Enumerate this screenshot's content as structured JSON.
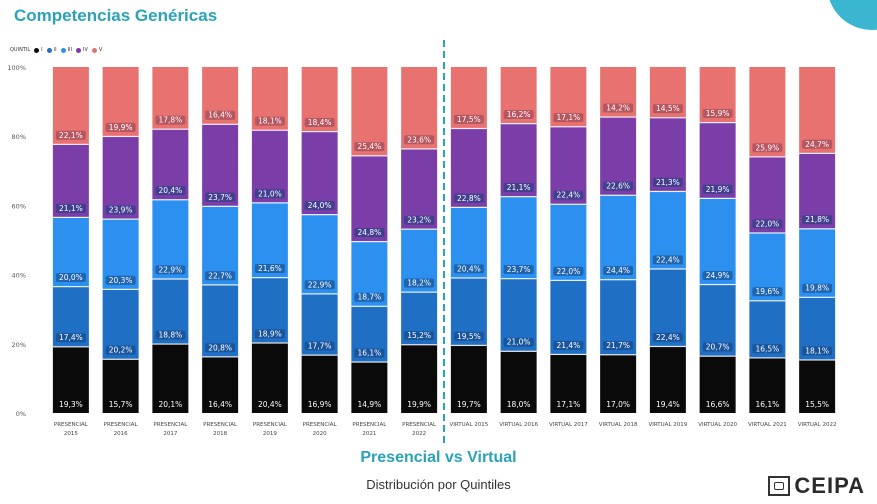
{
  "header": {
    "title": "Competencias Genéricas"
  },
  "legend": {
    "label": "QUINTIL",
    "items": [
      {
        "label": "I",
        "color": "#0a0a0a"
      },
      {
        "label": "II",
        "color": "#1f6fc5"
      },
      {
        "label": "III",
        "color": "#2c90f0"
      },
      {
        "label": "IV",
        "color": "#7b3ea8"
      },
      {
        "label": "V",
        "color": "#e8726f"
      }
    ]
  },
  "chart_data": {
    "type": "bar",
    "stacked": true,
    "categories": [
      [
        "PRESENCIAL",
        "2015"
      ],
      [
        "PRESENCIAL",
        "2016"
      ],
      [
        "PRESENCIAL",
        "2017"
      ],
      [
        "PRESENCIAL",
        "2018"
      ],
      [
        "PRESENCIAL",
        "2019"
      ],
      [
        "PRESENCIAL",
        "2020"
      ],
      [
        "PRESENCIAL",
        "2021"
      ],
      [
        "PRESENCIAL",
        "2022"
      ],
      [
        "VIRTUAL 2015"
      ],
      [
        "VIRTUAL 2016"
      ],
      [
        "VIRTUAL 2017"
      ],
      [
        "VIRTUAL 2018"
      ],
      [
        "VIRTUAL 2019"
      ],
      [
        "VIRTUAL 2020"
      ],
      [
        "VIRTUAL 2021"
      ],
      [
        "VIRTUAL 2022"
      ]
    ],
    "yticks": [
      "0%",
      "20%",
      "40%",
      "60%",
      "80%",
      "100%"
    ],
    "ylim": [
      0,
      100
    ],
    "series": [
      {
        "name": "I",
        "color": "#0a0a0a",
        "values": [
          19.3,
          15.7,
          20.1,
          16.4,
          20.4,
          16.9,
          14.9,
          19.9,
          19.7,
          18.0,
          17.1,
          17.0,
          19.4,
          16.6,
          16.1,
          15.5
        ],
        "labels": [
          "19,3%",
          "15,7%",
          "20,1%",
          "16,4%",
          "20,4%",
          "16,9%",
          "14,9%",
          "19,9%",
          "19,7%",
          "18,0%",
          "17,1%",
          "17,0%",
          "19,4%",
          "16,6%",
          "16,1%",
          "15,5%"
        ]
      },
      {
        "name": "II",
        "color": "#1f6fc5",
        "values": [
          17.4,
          20.2,
          18.8,
          20.8,
          18.9,
          17.7,
          16.1,
          15.2,
          19.5,
          21.0,
          21.4,
          21.7,
          22.4,
          20.7,
          16.5,
          18.1
        ],
        "labels": [
          "17,4%",
          "20,2%",
          "18,8%",
          "20,8%",
          "18,9%",
          "17,7%",
          "16,1%",
          "15,2%",
          "19,5%",
          "21,0%",
          "21,4%",
          "21,7%",
          "22,4%",
          "20,7%",
          "16,5%",
          "18,1%"
        ]
      },
      {
        "name": "III",
        "color": "#2c90f0",
        "values": [
          20.0,
          20.3,
          22.9,
          22.7,
          21.6,
          22.9,
          18.7,
          18.2,
          20.4,
          23.7,
          22.0,
          24.4,
          22.4,
          24.9,
          19.6,
          19.8
        ],
        "labels": [
          "20,0%",
          "20,3%",
          "22,9%",
          "22,7%",
          "21,6%",
          "22,9%",
          "18,7%",
          "18,2%",
          "20,4%",
          "23,7%",
          "22,0%",
          "24,4%",
          "22,4%",
          "24,9%",
          "19,6%",
          "19,8%"
        ]
      },
      {
        "name": "IV",
        "color": "#7b3ea8",
        "values": [
          21.1,
          23.9,
          20.4,
          23.7,
          21.0,
          24.0,
          24.8,
          23.2,
          22.8,
          21.1,
          22.4,
          22.6,
          21.3,
          21.9,
          22.0,
          21.8
        ],
        "labels": [
          "21,1%",
          "23,9%",
          "20,4%",
          "23,7%",
          "21,0%",
          "24,0%",
          "24,8%",
          "23,2%",
          "22,8%",
          "21,1%",
          "22,4%",
          "22,6%",
          "21,3%",
          "21,9%",
          "22,0%",
          "21,8%"
        ]
      },
      {
        "name": "V",
        "color": "#e8726f",
        "values": [
          22.1,
          19.9,
          17.8,
          16.4,
          18.1,
          18.4,
          25.4,
          23.6,
          17.5,
          16.2,
          17.1,
          14.2,
          14.5,
          15.9,
          25.9,
          24.7
        ],
        "labels": [
          "22,1%",
          "19,9%",
          "17,8%",
          "16,4%",
          "18,1%",
          "18,4%",
          "25,4%",
          "23,6%",
          "17,5%",
          "16,2%",
          "17,1%",
          "14,2%",
          "14,5%",
          "15,9%",
          "25,9%",
          "24,7%"
        ]
      }
    ]
  },
  "footer": {
    "title": "Presencial vs Virtual",
    "subtitle": "Distribución por Quintiles"
  },
  "brand": {
    "name": "CEIPA"
  }
}
